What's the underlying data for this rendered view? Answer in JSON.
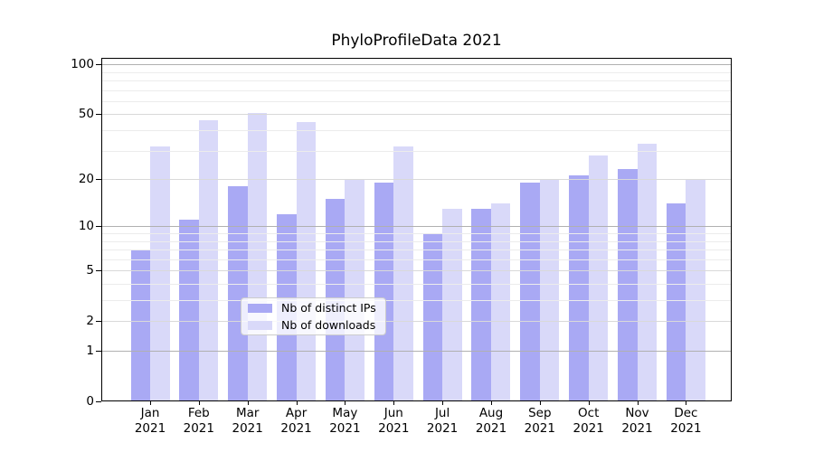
{
  "title": "PhyloProfileData 2021",
  "chart_data": {
    "type": "bar",
    "title": "PhyloProfileData 2021",
    "categories": [
      "Jan 2021",
      "Feb 2021",
      "Mar 2021",
      "Apr 2021",
      "May 2021",
      "Jun 2021",
      "Jul 2021",
      "Aug 2021",
      "Sep 2021",
      "Oct 2021",
      "Nov 2021",
      "Dec 2021"
    ],
    "x_tick_months": [
      "Jan",
      "Feb",
      "Mar",
      "Apr",
      "May",
      "Jun",
      "Jul",
      "Aug",
      "Sep",
      "Oct",
      "Nov",
      "Dec"
    ],
    "x_tick_year": "2021",
    "series": [
      {
        "name": "Nb of distinct IPs",
        "color": "#a9a9f4",
        "values": [
          7,
          11,
          18,
          12,
          15,
          19,
          9,
          13,
          19,
          21,
          23,
          14
        ]
      },
      {
        "name": "Nb of downloads",
        "color": "#d9d9f9",
        "values": [
          32,
          46,
          51,
          45,
          20,
          32,
          13,
          14,
          20,
          28,
          33,
          20
        ]
      }
    ],
    "xlabel": "",
    "ylabel": "",
    "yscale": "log10(value+1)",
    "y_ticks": [
      0,
      1,
      2,
      5,
      10,
      20,
      50,
      100
    ],
    "y_tick_labels": [
      "0",
      "1",
      "2",
      "5",
      "10",
      "20",
      "50",
      "100"
    ],
    "y_minor_gridlines": [
      3,
      4,
      6,
      7,
      8,
      9,
      30,
      40,
      60,
      70,
      80,
      90
    ],
    "ylim": [
      0,
      109
    ],
    "grid": "horizontal, drawn above bars",
    "legend_position": "inside lower-center"
  },
  "legend": {
    "items": [
      "Nb of distinct IPs",
      "Nb of downloads"
    ]
  }
}
